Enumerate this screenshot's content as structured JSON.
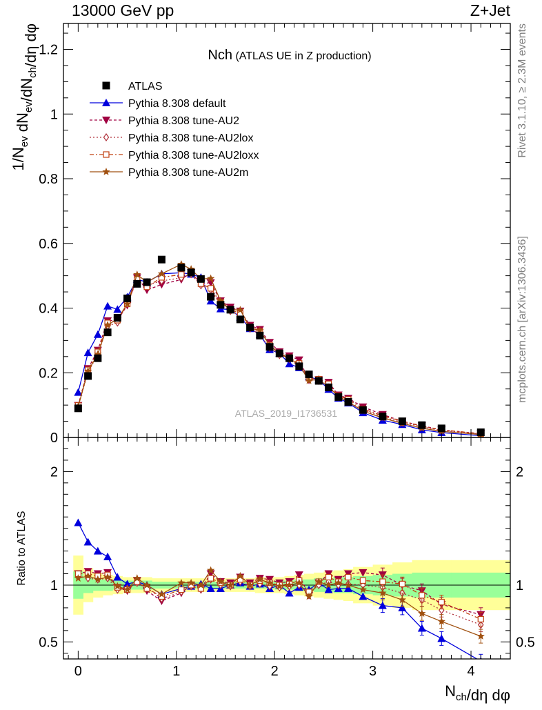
{
  "header": {
    "left": "13000 GeV pp",
    "right": "Z+Jet"
  },
  "side_labels": {
    "rivet": "Rivet 3.1.10, ≥ 2.3M events",
    "mcplots": "mcplots.cern.ch [arXiv:1306.3436]"
  },
  "chart_data": {
    "type": "line",
    "title": "Nch",
    "subtitle": "(ATLAS UE in Z production)",
    "watermark": "ATLAS_2019_I1736531",
    "xlabel": "N_ch/dη dφ",
    "ylabel": "1/N_ev dN_ev/dN_ch/dη dφ",
    "ratio_ylabel": "Ratio to ATLAS",
    "xlim": [
      -0.15,
      4.4
    ],
    "ylim": [
      0,
      1.28
    ],
    "ratio_ylim": [
      0.35,
      2.3
    ],
    "x_ticks": [
      "0",
      "1",
      "2",
      "3",
      "4"
    ],
    "y_ticks": [
      "0",
      "0.2",
      "0.4",
      "0.6",
      "0.8",
      "1",
      "1.2"
    ],
    "ratio_y_ticks": [
      "0.5",
      "1",
      "2"
    ],
    "legend_position": "top-left",
    "x": [
      0.0,
      0.1,
      0.2,
      0.3,
      0.4,
      0.5,
      0.6,
      0.7,
      0.85,
      1.05,
      1.15,
      1.25,
      1.35,
      1.45,
      1.55,
      1.65,
      1.75,
      1.85,
      1.95,
      2.05,
      2.15,
      2.25,
      2.35,
      2.45,
      2.55,
      2.65,
      2.75,
      2.9,
      3.1,
      3.3,
      3.5,
      3.7,
      4.1
    ],
    "reference": {
      "name": "ATLAS",
      "color": "#000000",
      "values": [
        0.09,
        0.19,
        0.245,
        0.325,
        0.37,
        0.43,
        0.475,
        0.48,
        0.55,
        0.525,
        0.51,
        0.49,
        0.435,
        0.41,
        0.395,
        0.365,
        0.34,
        0.315,
        0.28,
        0.26,
        0.245,
        0.22,
        0.195,
        0.175,
        0.155,
        0.125,
        0.11,
        0.085,
        0.065,
        0.05,
        0.038,
        0.028,
        0.016
      ]
    },
    "series": [
      {
        "name": "Pythia 8.308 default",
        "color": "#0000dd",
        "dash": "",
        "marker": "triangle-up",
        "ratio": [
          1.55,
          1.38,
          1.3,
          1.25,
          1.07,
          1.01,
          1.03,
          1.0,
          0.92,
          0.97,
          0.99,
          1.01,
          0.97,
          0.97,
          1.0,
          1.02,
          0.99,
          1.01,
          0.97,
          1.0,
          0.93,
          0.98,
          0.96,
          1.02,
          0.96,
          0.97,
          0.97,
          0.9,
          0.82,
          0.8,
          0.62,
          0.53,
          0.33
        ]
      },
      {
        "name": "Pythia 8.308 tune-AU2",
        "color": "#a00040",
        "dash": "4,3",
        "marker": "triangle-down",
        "ratio": [
          1.1,
          1.12,
          1.1,
          1.11,
          0.98,
          0.95,
          1.04,
          0.95,
          0.86,
          0.93,
          1.0,
          0.97,
          1.1,
          1.03,
          1.02,
          1.07,
          1.02,
          1.06,
          1.05,
          1.02,
          1.03,
          1.09,
          0.91,
          1.02,
          1.1,
          1.05,
          1.1,
          1.11,
          1.09,
          1.0,
          0.95,
          0.83,
          0.74
        ]
      },
      {
        "name": "Pythia 8.308 tune-AU2lox",
        "color": "#b0303a",
        "dash": "2,3",
        "marker": "diamond-open",
        "ratio": [
          1.08,
          1.06,
          1.05,
          1.06,
          0.96,
          0.97,
          1.02,
          0.98,
          0.88,
          0.94,
          0.99,
          0.96,
          1.05,
          1.0,
          0.99,
          1.03,
          0.99,
          1.01,
          0.99,
          0.98,
          0.99,
          1.0,
          0.93,
          1.0,
          1.03,
          1.0,
          1.01,
          1.0,
          0.98,
          0.93,
          0.87,
          0.78,
          0.65
        ]
      },
      {
        "name": "Pythia 8.308 tune-AU2loxx",
        "color": "#c04010",
        "dash": "6,3,2,3",
        "marker": "square-open",
        "ratio": [
          1.1,
          1.1,
          1.08,
          1.09,
          0.98,
          0.96,
          1.03,
          0.97,
          0.9,
          0.96,
          1.0,
          0.97,
          1.06,
          1.02,
          1.0,
          1.05,
          1.0,
          1.04,
          1.02,
          1.0,
          1.01,
          1.04,
          0.94,
          1.03,
          1.07,
          1.03,
          1.07,
          1.04,
          1.03,
          1.01,
          0.91,
          0.85,
          0.7
        ]
      },
      {
        "name": "Pythia 8.308 tune-AU2m",
        "color": "#a05010",
        "dash": "",
        "marker": "star",
        "ratio": [
          1.06,
          1.08,
          1.05,
          1.07,
          0.99,
          0.96,
          1.06,
          1.0,
          0.92,
          1.02,
          1.02,
          1.0,
          1.13,
          1.03,
          1.0,
          1.08,
          1.0,
          1.05,
          1.02,
          0.99,
          1.0,
          1.02,
          0.9,
          1.03,
          1.0,
          1.02,
          1.0,
          0.96,
          0.93,
          0.87,
          0.75,
          0.68,
          0.55
        ]
      }
    ],
    "ratio_bands": {
      "inner_color": "#99ff99",
      "outer_color": "#ffff99",
      "x_edges": [
        -0.05,
        0.05,
        0.15,
        0.25,
        0.35,
        0.45,
        0.55,
        0.65,
        0.75,
        0.95,
        1.1,
        1.2,
        1.3,
        1.4,
        1.5,
        1.6,
        1.7,
        1.8,
        1.9,
        2.0,
        2.1,
        2.2,
        2.3,
        2.4,
        2.5,
        2.6,
        2.7,
        2.8,
        3.0,
        3.2,
        3.4,
        3.6,
        3.8,
        4.4
      ],
      "inner_half": [
        0.12,
        0.07,
        0.05,
        0.05,
        0.04,
        0.04,
        0.04,
        0.04,
        0.03,
        0.03,
        0.03,
        0.03,
        0.03,
        0.03,
        0.03,
        0.03,
        0.03,
        0.03,
        0.03,
        0.04,
        0.04,
        0.05,
        0.05,
        0.06,
        0.06,
        0.07,
        0.07,
        0.08,
        0.09,
        0.1,
        0.11,
        0.11,
        0.11
      ],
      "outer_half": [
        0.26,
        0.15,
        0.11,
        0.09,
        0.08,
        0.07,
        0.07,
        0.07,
        0.06,
        0.06,
        0.06,
        0.06,
        0.06,
        0.06,
        0.06,
        0.06,
        0.06,
        0.07,
        0.07,
        0.07,
        0.08,
        0.09,
        0.1,
        0.11,
        0.12,
        0.13,
        0.14,
        0.16,
        0.18,
        0.2,
        0.22,
        0.22,
        0.22
      ]
    }
  }
}
